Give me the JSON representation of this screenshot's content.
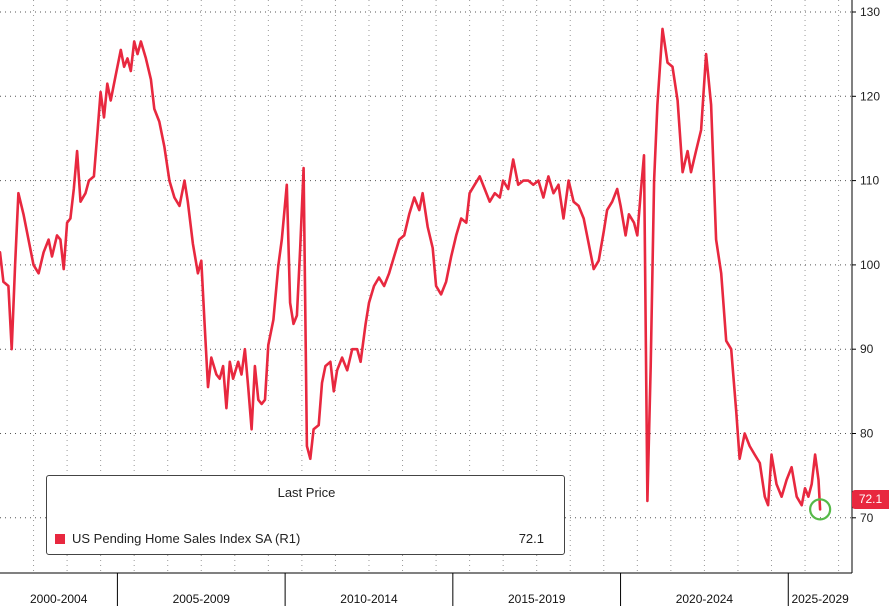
{
  "colors": {
    "series": "#e8283f",
    "grid": "#555555",
    "axis": "#000000",
    "marker": "#56b948"
  },
  "legend": {
    "title": "Last Price",
    "series_name": "US Pending Home Sales Index SA  (R1)",
    "series_value": "72.1"
  },
  "last_value_label": "72.1",
  "chart_data": {
    "type": "line",
    "title": "",
    "xlabel": "",
    "ylabel": "",
    "y_axis_side": "right",
    "ylim": [
      62,
      131
    ],
    "yticks": [
      70,
      80,
      90,
      100,
      110,
      120,
      130
    ],
    "xlim": [
      2001.0,
      2026.4
    ],
    "x_period_labels": [
      "2000-2004",
      "2005-2009",
      "2010-2014",
      "2015-2019",
      "2020-2024",
      "2025-2029"
    ],
    "x_period_boundaries": [
      2004.5,
      2009.5,
      2014.5,
      2019.5,
      2024.5
    ],
    "grid": true,
    "legend_position": "bottom-left",
    "highlight": {
      "x": 2025.45,
      "y": 71.0,
      "shape": "circle"
    },
    "series": [
      {
        "name": "US Pending Home Sales Index SA",
        "values": [
          [
            2001.0,
            101.5
          ],
          [
            2001.1,
            98
          ],
          [
            2001.25,
            97.5
          ],
          [
            2001.35,
            90
          ],
          [
            2001.45,
            100
          ],
          [
            2001.55,
            108.5
          ],
          [
            2001.7,
            106
          ],
          [
            2001.85,
            103
          ],
          [
            2002.0,
            100
          ],
          [
            2002.15,
            99
          ],
          [
            2002.3,
            101.5
          ],
          [
            2002.45,
            103
          ],
          [
            2002.55,
            101
          ],
          [
            2002.7,
            103.5
          ],
          [
            2002.8,
            103
          ],
          [
            2002.9,
            99.5
          ],
          [
            2003.0,
            105
          ],
          [
            2003.1,
            105.5
          ],
          [
            2003.2,
            109
          ],
          [
            2003.3,
            113.5
          ],
          [
            2003.4,
            107.5
          ],
          [
            2003.55,
            108.5
          ],
          [
            2003.65,
            110
          ],
          [
            2003.8,
            110.5
          ],
          [
            2003.9,
            115.5
          ],
          [
            2004.0,
            120.5
          ],
          [
            2004.1,
            117.5
          ],
          [
            2004.2,
            121.5
          ],
          [
            2004.3,
            119.5
          ],
          [
            2004.45,
            122.5
          ],
          [
            2004.6,
            125.5
          ],
          [
            2004.7,
            123.5
          ],
          [
            2004.8,
            124.5
          ],
          [
            2004.9,
            123
          ],
          [
            2005.0,
            126.5
          ],
          [
            2005.1,
            125
          ],
          [
            2005.2,
            126.5
          ],
          [
            2005.35,
            124.5
          ],
          [
            2005.5,
            122
          ],
          [
            2005.6,
            118.5
          ],
          [
            2005.75,
            117
          ],
          [
            2005.9,
            114
          ],
          [
            2006.05,
            110
          ],
          [
            2006.2,
            108
          ],
          [
            2006.35,
            107
          ],
          [
            2006.5,
            110
          ],
          [
            2006.6,
            107.5
          ],
          [
            2006.75,
            102.5
          ],
          [
            2006.9,
            99
          ],
          [
            2007.0,
            100.5
          ],
          [
            2007.1,
            93
          ],
          [
            2007.2,
            85.5
          ],
          [
            2007.3,
            89
          ],
          [
            2007.45,
            87
          ],
          [
            2007.55,
            86.5
          ],
          [
            2007.65,
            88
          ],
          [
            2007.75,
            83
          ],
          [
            2007.85,
            88.5
          ],
          [
            2007.95,
            86.5
          ],
          [
            2008.1,
            88.5
          ],
          [
            2008.2,
            87
          ],
          [
            2008.3,
            90
          ],
          [
            2008.4,
            85.5
          ],
          [
            2008.5,
            80.5
          ],
          [
            2008.6,
            88
          ],
          [
            2008.7,
            84
          ],
          [
            2008.8,
            83.5
          ],
          [
            2008.9,
            84
          ],
          [
            2009.0,
            90.5
          ],
          [
            2009.15,
            93.5
          ],
          [
            2009.3,
            100
          ],
          [
            2009.4,
            103
          ],
          [
            2009.55,
            109.5
          ],
          [
            2009.65,
            95.5
          ],
          [
            2009.75,
            93
          ],
          [
            2009.85,
            94
          ],
          [
            2009.95,
            102
          ],
          [
            2010.05,
            111.5
          ],
          [
            2010.15,
            78.5
          ],
          [
            2010.25,
            77
          ],
          [
            2010.35,
            80.5
          ],
          [
            2010.5,
            81
          ],
          [
            2010.6,
            86
          ],
          [
            2010.7,
            88
          ],
          [
            2010.85,
            88.5
          ],
          [
            2010.95,
            85
          ],
          [
            2011.05,
            87.5
          ],
          [
            2011.2,
            89
          ],
          [
            2011.35,
            87.5
          ],
          [
            2011.5,
            90
          ],
          [
            2011.65,
            90
          ],
          [
            2011.75,
            88.5
          ],
          [
            2011.9,
            93
          ],
          [
            2012.0,
            95.5
          ],
          [
            2012.15,
            97.5
          ],
          [
            2012.3,
            98.5
          ],
          [
            2012.45,
            97.5
          ],
          [
            2012.6,
            99
          ],
          [
            2012.75,
            101
          ],
          [
            2012.9,
            103
          ],
          [
            2013.05,
            103.5
          ],
          [
            2013.2,
            106
          ],
          [
            2013.35,
            108
          ],
          [
            2013.5,
            106.5
          ],
          [
            2013.6,
            108.5
          ],
          [
            2013.75,
            104.5
          ],
          [
            2013.9,
            102
          ],
          [
            2014.0,
            97.5
          ],
          [
            2014.15,
            96.5
          ],
          [
            2014.3,
            98
          ],
          [
            2014.45,
            101
          ],
          [
            2014.6,
            103.5
          ],
          [
            2014.75,
            105.5
          ],
          [
            2014.9,
            105
          ],
          [
            2015.0,
            108.5
          ],
          [
            2015.15,
            109.5
          ],
          [
            2015.3,
            110.5
          ],
          [
            2015.45,
            109
          ],
          [
            2015.6,
            107.5
          ],
          [
            2015.75,
            108.5
          ],
          [
            2015.9,
            108
          ],
          [
            2016.0,
            110
          ],
          [
            2016.15,
            109
          ],
          [
            2016.3,
            112.5
          ],
          [
            2016.45,
            109.5
          ],
          [
            2016.6,
            110
          ],
          [
            2016.75,
            110
          ],
          [
            2016.9,
            109.5
          ],
          [
            2017.05,
            110
          ],
          [
            2017.2,
            108
          ],
          [
            2017.35,
            110.5
          ],
          [
            2017.5,
            108.5
          ],
          [
            2017.65,
            109.5
          ],
          [
            2017.8,
            105.5
          ],
          [
            2017.95,
            110
          ],
          [
            2018.1,
            107.5
          ],
          [
            2018.25,
            107
          ],
          [
            2018.4,
            105.5
          ],
          [
            2018.55,
            102.5
          ],
          [
            2018.7,
            99.5
          ],
          [
            2018.85,
            100.5
          ],
          [
            2019.0,
            104
          ],
          [
            2019.1,
            106.5
          ],
          [
            2019.25,
            107.5
          ],
          [
            2019.4,
            109
          ],
          [
            2019.5,
            107
          ],
          [
            2019.65,
            103.5
          ],
          [
            2019.75,
            106
          ],
          [
            2019.9,
            105
          ],
          [
            2020.0,
            103.5
          ],
          [
            2020.1,
            108.5
          ],
          [
            2020.2,
            113
          ],
          [
            2020.3,
            72
          ],
          [
            2020.4,
            88
          ],
          [
            2020.5,
            110
          ],
          [
            2020.6,
            119
          ],
          [
            2020.75,
            128
          ],
          [
            2020.9,
            124
          ],
          [
            2021.05,
            123.5
          ],
          [
            2021.2,
            119.5
          ],
          [
            2021.35,
            111
          ],
          [
            2021.5,
            113.5
          ],
          [
            2021.6,
            111
          ],
          [
            2021.75,
            113.5
          ],
          [
            2021.9,
            116
          ],
          [
            2022.05,
            125
          ],
          [
            2022.2,
            119
          ],
          [
            2022.35,
            103
          ],
          [
            2022.5,
            99
          ],
          [
            2022.65,
            91
          ],
          [
            2022.8,
            90
          ],
          [
            2022.95,
            82.5
          ],
          [
            2023.05,
            77
          ],
          [
            2023.2,
            80
          ],
          [
            2023.35,
            78.5
          ],
          [
            2023.5,
            77.5
          ],
          [
            2023.65,
            76.5
          ],
          [
            2023.8,
            72.5
          ],
          [
            2023.9,
            71.5
          ],
          [
            2024.0,
            77.5
          ],
          [
            2024.15,
            74
          ],
          [
            2024.3,
            72.5
          ],
          [
            2024.45,
            74.5
          ],
          [
            2024.6,
            76
          ],
          [
            2024.75,
            72.5
          ],
          [
            2024.9,
            71.5
          ],
          [
            2025.0,
            73.5
          ],
          [
            2025.1,
            72.5
          ],
          [
            2025.2,
            74
          ],
          [
            2025.3,
            77.5
          ],
          [
            2025.4,
            74.5
          ],
          [
            2025.45,
            71
          ]
        ]
      }
    ]
  }
}
